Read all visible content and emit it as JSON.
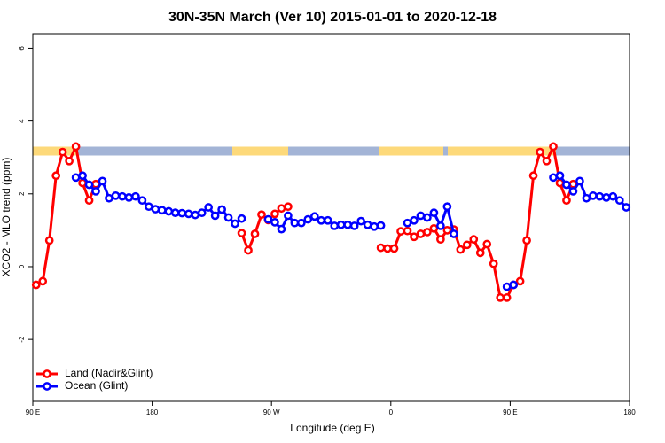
{
  "chart_data": {
    "type": "line",
    "title": "30N-35N March (Ver 10)   2015-01-01 to 2020-12-18",
    "x_label": "Longitude (deg E)",
    "y_label": "XCO2 - MLO trend (ppm)",
    "xlim": [
      90,
      540
    ],
    "ylim": [
      -3.7,
      6.4
    ],
    "xticks": [
      {
        "value": 90,
        "label": "90 E"
      },
      180,
      {
        "value": 270,
        "label": "90 W"
      },
      {
        "value": 360,
        "label": "0"
      },
      {
        "value": 450,
        "label": "90 E"
      },
      {
        "value": 540,
        "label": "180"
      }
    ],
    "yticks": [
      -2,
      0,
      2,
      4,
      6
    ],
    "legend": "bottom-left",
    "x": [
      92.5,
      97.5,
      102.5,
      107.5,
      112.5,
      117.5,
      122.5,
      127.5,
      132.5,
      137.5,
      142.5,
      147.5,
      152.5,
      157.5,
      162.5,
      167.5,
      172.5,
      177.5,
      182.5,
      187.5,
      192.5,
      197.5,
      202.5,
      207.5,
      212.5,
      217.5,
      222.5,
      227.5,
      232.5,
      237.5,
      242.5,
      247.5,
      252.5,
      257.5,
      262.5,
      267.5,
      272.5,
      277.5,
      282.5,
      287.5,
      292.5,
      297.5,
      302.5,
      307.5,
      312.5,
      317.5,
      322.5,
      327.5,
      332.5,
      337.5,
      342.5,
      347.5,
      352.5,
      357.5,
      362.5,
      367.5,
      372.5,
      377.5,
      382.5,
      387.5,
      392.5,
      397.5,
      402.5,
      407.5,
      412.5,
      417.5,
      422.5,
      427.5,
      432.5,
      437.5,
      442.5,
      447.5,
      452.5,
      457.5,
      462.5,
      467.5,
      472.5,
      477.5,
      482.5,
      487.5,
      492.5,
      497.5,
      502.5,
      507.5,
      512.5,
      517.5,
      522.5,
      527.5,
      532.5,
      537.5
    ],
    "series": [
      {
        "name": "Land (Nadir&Glint)",
        "color": "#ff0000",
        "values": [
          -0.5,
          -0.4,
          0.72,
          2.5,
          3.15,
          2.9,
          3.3,
          2.3,
          1.82,
          2.27,
          null,
          null,
          null,
          null,
          null,
          null,
          null,
          null,
          null,
          null,
          null,
          null,
          null,
          null,
          null,
          null,
          null,
          null,
          null,
          null,
          null,
          0.92,
          0.45,
          0.9,
          1.43,
          1.28,
          1.45,
          1.6,
          1.65,
          null,
          null,
          null,
          null,
          null,
          null,
          null,
          null,
          null,
          null,
          null,
          null,
          null,
          0.52,
          0.5,
          0.5,
          0.97,
          0.98,
          0.82,
          0.9,
          0.95,
          1.05,
          0.75,
          1.0,
          1.02,
          0.47,
          0.6,
          0.75,
          0.38,
          0.62,
          0.08,
          -0.85,
          -0.85,
          -0.5,
          -0.4,
          0.72,
          2.5,
          3.15,
          2.9,
          3.3,
          2.3,
          1.82,
          2.27,
          null,
          null,
          null,
          null,
          null,
          null,
          null,
          null
        ]
      },
      {
        "name": "Ocean (Glint)",
        "color": "#0000ff",
        "values": [
          null,
          null,
          null,
          null,
          null,
          null,
          2.45,
          2.5,
          2.25,
          2.07,
          2.35,
          1.88,
          1.95,
          1.93,
          1.9,
          1.93,
          1.82,
          1.65,
          1.58,
          1.55,
          1.52,
          1.48,
          1.47,
          1.45,
          1.42,
          1.48,
          1.63,
          1.4,
          1.57,
          1.35,
          1.18,
          1.32,
          null,
          null,
          null,
          1.3,
          1.22,
          1.03,
          1.4,
          1.2,
          1.2,
          1.3,
          1.38,
          1.27,
          1.27,
          1.12,
          1.15,
          1.15,
          1.12,
          1.25,
          1.15,
          1.1,
          1.13,
          null,
          null,
          null,
          1.2,
          1.27,
          1.4,
          1.35,
          1.48,
          1.12,
          1.65,
          0.9,
          null,
          null,
          null,
          null,
          null,
          null,
          null,
          -0.55,
          -0.5,
          null,
          null,
          null,
          null,
          null,
          2.45,
          2.5,
          2.25,
          2.07,
          2.35,
          1.88,
          1.95,
          1.93,
          1.9,
          1.93,
          1.82,
          1.63
        ]
      }
    ]
  }
}
